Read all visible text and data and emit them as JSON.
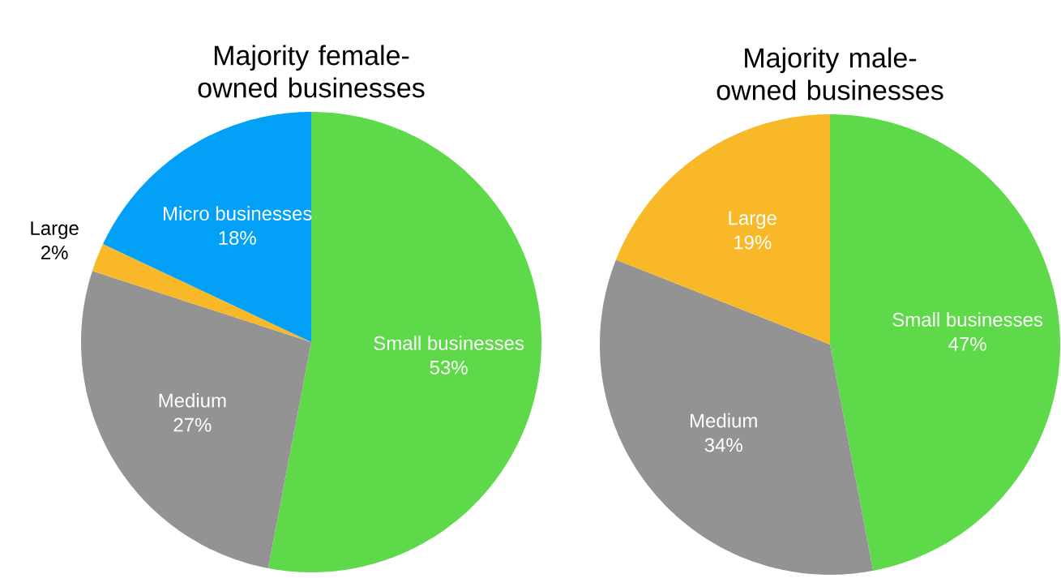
{
  "chart_data": [
    {
      "type": "pie",
      "title": "Majority female-owned businesses",
      "categories": [
        "Small businesses",
        "Medium",
        "Large",
        "Micro businesses"
      ],
      "values": [
        53,
        27,
        2,
        18
      ],
      "value_labels": [
        "53%",
        "27%",
        "2%",
        "18%"
      ],
      "colors": [
        "#5ed94a",
        "#939393",
        "#f8b827",
        "#03a0f8"
      ]
    },
    {
      "type": "pie",
      "title": "Majority male-owned businesses",
      "categories": [
        "Small businesses",
        "Medium",
        "Large"
      ],
      "values": [
        47,
        34,
        19
      ],
      "value_labels": [
        "47%",
        "34%",
        "19%"
      ],
      "colors": [
        "#5ed94a",
        "#939393",
        "#f8b827"
      ]
    }
  ]
}
